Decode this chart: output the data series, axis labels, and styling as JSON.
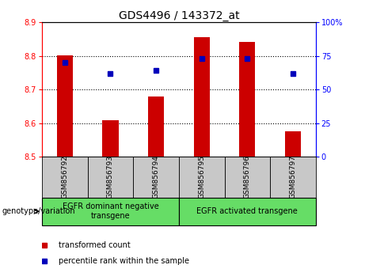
{
  "title": "GDS4496 / 143372_at",
  "samples": [
    "GSM856792",
    "GSM856793",
    "GSM856794",
    "GSM856795",
    "GSM856796",
    "GSM856797"
  ],
  "bar_values": [
    8.802,
    8.61,
    8.68,
    8.855,
    8.843,
    8.575
  ],
  "bar_bottom": 8.5,
  "percentile_values": [
    70,
    62,
    64,
    73,
    73,
    62
  ],
  "ylim": [
    8.5,
    8.9
  ],
  "yticks_left": [
    8.5,
    8.6,
    8.7,
    8.8,
    8.9
  ],
  "yticks_right": [
    0,
    25,
    50,
    75,
    100
  ],
  "yticklabels_right": [
    "0",
    "25",
    "50",
    "75",
    "100%"
  ],
  "grid_lines": [
    8.6,
    8.7,
    8.8
  ],
  "bar_color": "#cc0000",
  "percentile_color": "#0000bb",
  "groups": [
    {
      "label": "EGFR dominant negative\ntransgene",
      "indices": [
        0,
        1,
        2
      ]
    },
    {
      "label": "EGFR activated transgene",
      "indices": [
        3,
        4,
        5
      ]
    }
  ],
  "group_bg_color": "#66dd66",
  "sample_bg_color": "#c8c8c8",
  "legend_red_label": "transformed count",
  "legend_blue_label": "percentile rank within the sample",
  "genotype_label": "genotype/variation",
  "title_fontsize": 10,
  "tick_fontsize": 7,
  "sample_fontsize": 6.5,
  "group_fontsize": 7,
  "legend_fontsize": 7,
  "genotype_fontsize": 7,
  "bar_width": 0.35
}
